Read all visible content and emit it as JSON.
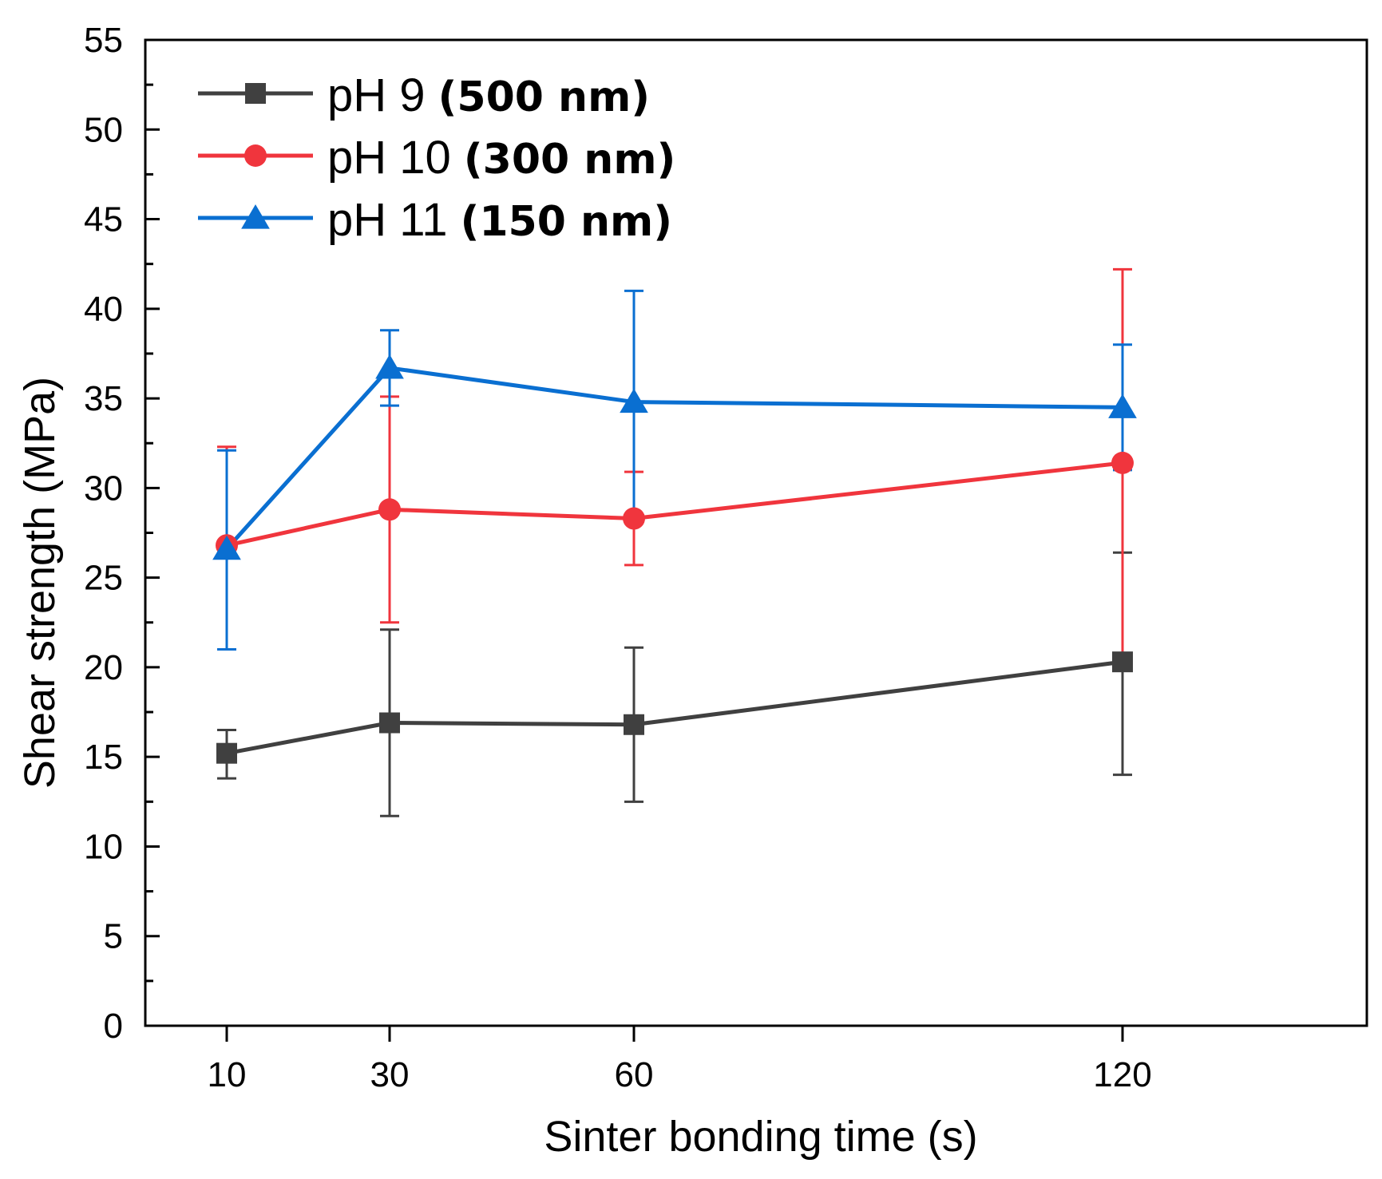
{
  "chart_data": {
    "type": "line",
    "title": "",
    "xlabel": "Sinter bonding time (s)",
    "ylabel": "Shear strength (MPa)",
    "x": [
      10,
      30,
      60,
      120
    ],
    "x_tick_labels": [
      "10",
      "30",
      "60",
      "120"
    ],
    "xlim": [
      0,
      150
    ],
    "ylim": [
      0,
      55
    ],
    "y_ticks": [
      0,
      5,
      10,
      15,
      20,
      25,
      30,
      35,
      40,
      45,
      50,
      55
    ],
    "y_tick_labels": [
      "0",
      "5",
      "10",
      "15",
      "20",
      "25",
      "30",
      "35",
      "40",
      "45",
      "50",
      "55"
    ],
    "legend_position": "top-left",
    "series": [
      {
        "name": "pH 9",
        "size_label": "(500 nm)",
        "color": "#404040",
        "marker": "square",
        "values": [
          15.2,
          16.9,
          16.8,
          20.3
        ],
        "err_low": [
          13.8,
          11.7,
          12.5,
          14.0
        ],
        "err_high": [
          16.5,
          22.1,
          21.1,
          26.4
        ]
      },
      {
        "name": "pH 10",
        "size_label": "(300 nm)",
        "color": "#f0353d",
        "marker": "circle",
        "values": [
          26.8,
          28.8,
          28.3,
          31.4
        ],
        "err_low": [
          21.0,
          22.5,
          25.7,
          20.5
        ],
        "err_high": [
          32.3,
          35.1,
          30.9,
          42.2
        ]
      },
      {
        "name": "pH 11",
        "size_label": "(150 nm)",
        "color": "#0a6fd1",
        "marker": "triangle",
        "values": [
          26.6,
          36.7,
          34.8,
          34.5
        ],
        "err_low": [
          21.0,
          34.6,
          28.5,
          31.0
        ],
        "err_high": [
          32.1,
          38.8,
          41.0,
          38.0
        ]
      }
    ]
  }
}
